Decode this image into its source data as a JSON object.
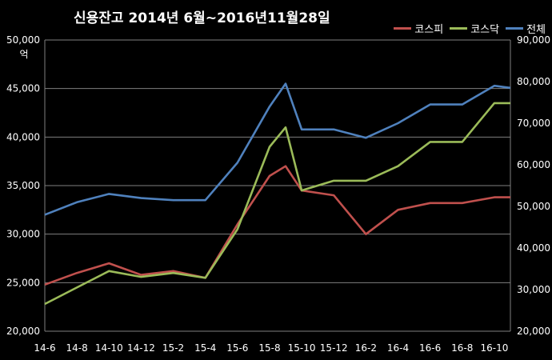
{
  "title": "신용잔고  2014년 6월~2016년11월28일",
  "left_unit": "억",
  "colors": {
    "kospi": "#c0504d",
    "kosdaq": "#9bbb59",
    "total": "#4f81bd"
  },
  "chart_data": {
    "type": "line",
    "title": "신용잔고  2014년 6월~2016년11월28일",
    "x_ticks": [
      "14-6",
      "14-8",
      "14-10",
      "14-12",
      "15-2",
      "15-4",
      "15-6",
      "15-8",
      "15-10",
      "15-12",
      "16-2",
      "16-4",
      "16-6",
      "16-8",
      "16-10"
    ],
    "y_left": {
      "ylim": [
        20000,
        50000
      ],
      "ticks": [
        "20,000",
        "25,000",
        "30,000",
        "35,000",
        "40,000",
        "45,000",
        "50,000"
      ],
      "unit": "억"
    },
    "y_right": {
      "ylim": [
        20000,
        90000
      ],
      "ticks": [
        "20,000",
        "30,000",
        "40,000",
        "50,000",
        "60,000",
        "70,000",
        "80,000",
        "90,000"
      ]
    },
    "grid": true,
    "legend": "top-right",
    "series": [
      {
        "name": "코스피",
        "axis": "left",
        "x_index": [
          0,
          1,
          2,
          3,
          4,
          5,
          6,
          7,
          7.5,
          8,
          9,
          10,
          11,
          12,
          13,
          14,
          14.5
        ],
        "values": [
          24800,
          26000,
          27000,
          25800,
          26200,
          25500,
          31000,
          36000,
          37000,
          34500,
          34000,
          30000,
          32500,
          33200,
          33200,
          33800,
          33800
        ]
      },
      {
        "name": "코스닥",
        "axis": "left",
        "x_index": [
          0,
          1,
          2,
          3,
          4,
          5,
          6,
          7,
          7.5,
          8,
          9,
          10,
          11,
          12,
          13,
          14,
          14.5
        ],
        "values": [
          22800,
          24500,
          26200,
          25600,
          26000,
          25500,
          30500,
          39000,
          41000,
          34500,
          35500,
          35500,
          37000,
          39500,
          39500,
          43500,
          43500
        ]
      },
      {
        "name": "전체",
        "axis": "right",
        "x_index": [
          0,
          1,
          2,
          3,
          4,
          5,
          6,
          7,
          7.5,
          8,
          9,
          10,
          11,
          12,
          13,
          14,
          14.5
        ],
        "values": [
          48000,
          51000,
          53000,
          52000,
          51500,
          51500,
          60500,
          74000,
          79500,
          68500,
          68500,
          66500,
          70000,
          74500,
          74500,
          79000,
          78500
        ]
      }
    ]
  }
}
